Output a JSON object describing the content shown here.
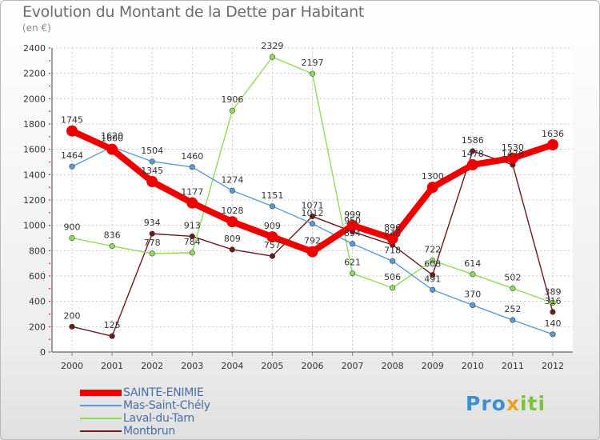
{
  "header": {
    "title": "Evolution du Montant de la Dette par Habitant",
    "unit": "(en €)"
  },
  "logo": {
    "text": "Proxiti",
    "part1": "Pro",
    "part2": "x",
    "part3": "iti"
  },
  "chart_data": {
    "type": "line",
    "title": "Evolution du Montant de la Dette par Habitant",
    "subtitle": "(en €)",
    "xlabel": "",
    "ylabel": "",
    "x": [
      "2000",
      "2001",
      "2002",
      "2003",
      "2004",
      "2005",
      "2006",
      "2007",
      "2008",
      "2009",
      "2010",
      "2011",
      "2012"
    ],
    "ylim": [
      0,
      2400
    ],
    "yticks": [
      0,
      200,
      400,
      600,
      800,
      1000,
      1200,
      1400,
      1600,
      1800,
      2000,
      2200,
      2400
    ],
    "grid": true,
    "legend_position": "bottom-left",
    "series": [
      {
        "name": "SAINTE-ENIMIE",
        "color": "#ee0000",
        "values": [
          1745,
          1600,
          1345,
          1177,
          1028,
          909,
          792,
          999,
          896,
          1300,
          1478,
          1530,
          1636
        ]
      },
      {
        "name": "Mas-Saint-Chély",
        "color": "#5b9bd5",
        "values": [
          1464,
          1620,
          1504,
          1460,
          1274,
          1151,
          1012,
          854,
          718,
          491,
          370,
          252,
          140
        ]
      },
      {
        "name": "Laval-du-Tarn",
        "color": "#8fdc5a",
        "values": [
          900,
          836,
          778,
          784,
          1906,
          2329,
          2197,
          621,
          506,
          722,
          614,
          502,
          389
        ]
      },
      {
        "name": "Montbrun",
        "color": "#6b1a1a",
        "values": [
          200,
          125,
          934,
          913,
          809,
          757,
          1071,
          950,
          846,
          608,
          1586,
          1478,
          316
        ]
      }
    ]
  }
}
